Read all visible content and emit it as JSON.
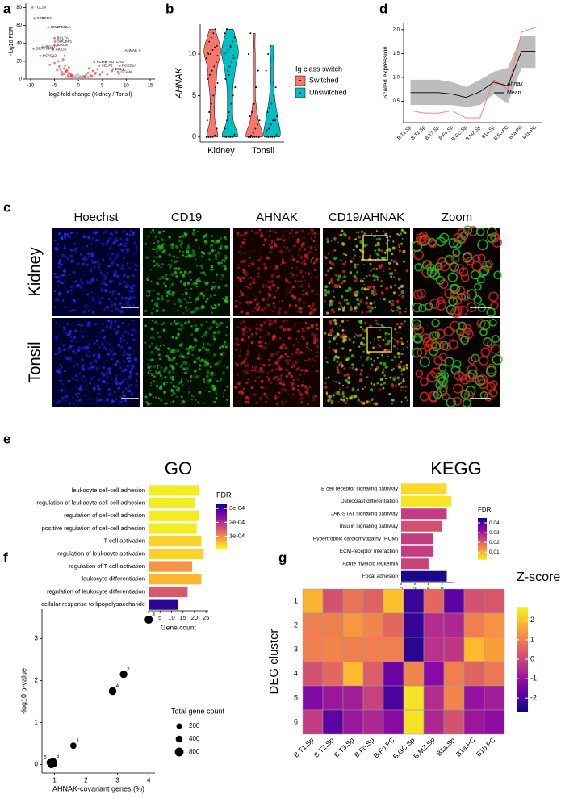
{
  "chart_data": [
    {
      "panel": "a",
      "type": "scatter",
      "xlabel": "log2 fold change (Kidney / Tonsil)",
      "ylabel": "-log10 FDR",
      "xlim": [
        -11,
        16
      ],
      "xticks": [
        -10,
        -5,
        0,
        5,
        10,
        15
      ],
      "ylim": [
        0,
        85
      ],
      "yticks": [
        0,
        20,
        40,
        60,
        80
      ],
      "series": [
        {
          "color": "#9e9e9e",
          "x": [
            -1.8,
            -1.5,
            -1.2,
            -1,
            -0.8,
            -0.6,
            -0.4,
            -0.2,
            0,
            0.2,
            0.4,
            0.6,
            0.8,
            1,
            1.2,
            1.5,
            1.8,
            2.2,
            -2.2,
            -0.5,
            0.3,
            0.9,
            -1.1,
            1.4,
            -0.1,
            0.1,
            0.5,
            -0.7,
            2,
            -2.5
          ],
          "values": [
            1.2,
            2,
            1.5,
            2.6,
            1,
            3,
            1.8,
            0.6,
            0.3,
            0.8,
            2.2,
            1.4,
            2.8,
            1.6,
            1,
            2.1,
            0.9,
            1.3,
            2.4,
            4,
            3.5,
            3.2,
            3.8,
            0.5,
            5,
            1.9,
            0.4,
            0.2,
            2.7,
            1.1
          ]
        },
        {
          "color": "#ff0000",
          "x": [
            -1.5,
            -2,
            -2.5,
            -3,
            -3.5,
            -4,
            -4.5,
            -5,
            -2.2,
            -2.8,
            -3.2,
            -3.8,
            -1.8,
            -2.4,
            -3,
            -4.2,
            -5.5,
            -6,
            -1.6,
            -2,
            -2.6,
            -3.4,
            -1.3,
            -2.9,
            1.2,
            1.6,
            2,
            2.5,
            3,
            3.5,
            4,
            5,
            6,
            1.4,
            2.2,
            2.8,
            3.6,
            4.5,
            7,
            8.5
          ],
          "values": [
            5,
            7,
            9,
            12,
            8,
            14,
            10,
            18,
            4,
            15,
            22,
            11,
            6,
            10,
            6,
            20,
            25,
            16,
            3,
            13,
            8,
            5,
            4,
            26,
            3,
            5,
            7,
            4,
            9,
            6,
            11,
            8,
            5,
            2.5,
            12,
            3.5,
            7,
            5,
            9,
            6
          ]
        },
        {
          "color": "#ff0000",
          "x": [
            -9.6,
            -9.2,
            -6.3,
            -4.6,
            -5,
            -4.9,
            -5,
            -7.4,
            -9.4,
            -5.3,
            -8,
            12.8,
            3.3,
            5.8,
            4.3,
            8.6,
            7.2,
            8.3
          ],
          "values": [
            80,
            68,
            58,
            58,
            46,
            42,
            38,
            36,
            34,
            33,
            26,
            32,
            19,
            19,
            15,
            15,
            11,
            8
          ],
          "labels": [
            "TCL1A",
            "SPRED2",
            "RIN2",
            "FCRLA",
            "BCL7A",
            "SHCBP1",
            "BIRC5",
            "RGS13",
            "SERPINA9",
            "AICDA",
            "DCAF12",
            "AHNAK",
            "FCMR",
            "NOTCH2",
            "CELF2",
            "PCED1A",
            "BCL2",
            "ITGAM"
          ]
        }
      ]
    },
    {
      "panel": "b",
      "type": "violin",
      "ylabel": "AHNAK",
      "ylim": [
        -0.6,
        13.6
      ],
      "yticks": [
        0,
        5,
        10
      ],
      "categories": [
        "Kidney",
        "Tonsil"
      ],
      "legend_title": "Ig class switch",
      "series": [
        {
          "name": "Switched",
          "color": "#f8766d",
          "values": [
            [
              0,
              0,
              0,
              0,
              0.2,
              1,
              2,
              3,
              4,
              5,
              6,
              6.5,
              7,
              7.5,
              8,
              8.5,
              9,
              9.5,
              10,
              10,
              10.5,
              10.8,
              11,
              11.2,
              11.5,
              12,
              12.5,
              13,
              9.8,
              10.2
            ],
            [
              0,
              0,
              0,
              0,
              0,
              0,
              0,
              0.2,
              0.5,
              1,
              1.5,
              2,
              2.5,
              3,
              4,
              6,
              8,
              10,
              12.5
            ]
          ]
        },
        {
          "name": "Unswitched",
          "color": "#00bfc4",
          "values": [
            [
              0,
              0,
              0,
              0,
              0,
              0.3,
              1,
              2,
              3,
              4,
              5,
              6,
              7,
              8,
              8.5,
              9,
              9.5,
              10,
              10.2,
              10.5,
              11,
              11.5,
              12,
              12.5,
              13,
              7.5,
              10.8,
              9.8
            ],
            [
              0,
              0,
              0,
              0,
              0,
              0.3,
              0.8,
              1,
              1.5,
              2,
              2,
              2.5,
              3,
              3.5,
              4,
              5,
              6,
              8,
              10,
              11
            ]
          ]
        }
      ]
    },
    {
      "panel": "d",
      "type": "line",
      "ylabel": "Scaled expression",
      "categories": [
        "B.T1.Sp",
        "B.T2.Sp",
        "B.T3.Sp",
        "B.Fo.Sp",
        "B.GC.Sp",
        "B.MZ.Sp",
        "B1a.Sp",
        "B.Fo.PC",
        "B1a.PC",
        "B1b.PC"
      ],
      "ylim": [
        0.05,
        2.15
      ],
      "yticks": [
        0.5,
        {
          "value": 1,
          "label": "1.0"
        },
        1.5,
        {
          "value": 2,
          "label": "2.0"
        }
      ],
      "series": [
        {
          "name": "Ahnak",
          "color": "#f8766d",
          "values": [
            0.3,
            0.25,
            0.25,
            0.3,
            0.15,
            0.15,
            0.95,
            0.75,
            1.95,
            2.05
          ]
        },
        {
          "name": "Mean",
          "color": "#000000",
          "values": [
            0.68,
            0.68,
            0.68,
            0.65,
            0.58,
            0.7,
            0.9,
            0.82,
            1.55,
            1.55
          ],
          "band_lower": [
            0.42,
            0.42,
            0.42,
            0.42,
            0.38,
            0.42,
            0.65,
            0.45,
            1.2,
            1.2
          ],
          "band_upper": [
            0.95,
            0.95,
            0.95,
            0.9,
            0.8,
            0.95,
            1.12,
            1.2,
            1.88,
            1.88
          ],
          "band_color": "#bdbdbd"
        }
      ]
    },
    {
      "panel": "e",
      "type": "barh",
      "title": "GO",
      "xlabel": "Gene count",
      "xlim": [
        0,
        26
      ],
      "xticks": [
        0,
        5,
        10,
        15,
        20,
        25
      ],
      "categories": [
        "leukocyte cell-cell adhesion",
        "regulation of leukocyte cell-cell adhesion",
        "regulation of cell-cell adhesion",
        "positive regulation of cell-cell adhesion",
        "T cell activation",
        "regulation of leukocyte activation",
        "regulation of T cell activation",
        "leukocyte differentiation",
        "regulation of leukocyte differentiation",
        "cellular response to lipopolysaccharide"
      ],
      "values": [
        22,
        20,
        22,
        21,
        23,
        24,
        19,
        23,
        17,
        13
      ],
      "fdr": [
        2e-05,
        2e-05,
        2e-05,
        2e-05,
        4e-05,
        4e-05,
        9e-05,
        6e-05,
        0.00015,
        0.00031
      ],
      "colormap": "plasma_r",
      "colorbar_title": "FDR",
      "clim": [
        1e-05,
        0.00033
      ],
      "cticks": [
        {
          "value": 0.0001,
          "label": "1e-04"
        },
        {
          "value": 0.0002,
          "label": "2e-04"
        },
        {
          "value": 0.0003,
          "label": "3e-04"
        }
      ]
    },
    {
      "type": "barh",
      "title": "KEGG",
      "xlabel": "Gene count",
      "xlim": [
        0,
        11.5
      ],
      "xticks": [
        0,
        3,
        6,
        9
      ],
      "categories": [
        "B cell receptor signaling pathway",
        "Osteoclast differentiation",
        "JAK-STAT signaling pathway",
        "Insulin signaling pathway",
        "Hypertrophic cardiomyopathy (HCM)",
        "ECM-receptor interaction",
        "Acute myeloid leukemia",
        "Focal adhesion"
      ],
      "values": [
        10,
        11,
        10,
        9,
        7,
        7,
        6,
        10
      ],
      "fdr": [
        0.005,
        0.004,
        0.025,
        0.022,
        0.025,
        0.025,
        0.024,
        0.044
      ],
      "colormap": "plasma_r",
      "colorbar_title": "FDR",
      "clim": [
        0.002,
        0.045
      ],
      "cticks": [
        0.01,
        0.02,
        0.03,
        0.04
      ]
    },
    {
      "panel": "f",
      "type": "bubble",
      "xlabel": "AHNAK-covariant genes (%)",
      "ylabel": "-log10 p-value",
      "xlim": [
        0.6,
        4.2
      ],
      "xticks": [
        1,
        2,
        3,
        4
      ],
      "ylim": [
        -0.2,
        3.7
      ],
      "yticks": [
        0,
        1,
        2,
        3
      ],
      "x": [
        1.6,
        3.2,
        4.0,
        2.85,
        0.85,
        0.95,
        0.9,
        0.98
      ],
      "values": [
        0.45,
        2.15,
        3.45,
        1.75,
        0.05,
        0.08,
        0.0,
        0.02
      ],
      "sizes": [
        300,
        500,
        650,
        550,
        350,
        400,
        450,
        380
      ],
      "labels": [
        "1",
        "2",
        "3",
        "4",
        "5",
        "6",
        null,
        null
      ],
      "size_title": "Total gene count",
      "size_legend": [
        200,
        400,
        800
      ]
    },
    {
      "panel": "g",
      "type": "heatmap",
      "ylabel": "DEG cluster",
      "rows": [
        "1",
        "2",
        "3",
        "4",
        "5",
        "6"
      ],
      "categories": [
        "B.T1.Sp",
        "B.T2.Sp",
        "B.T3.Sp",
        "B.Fo.Sp",
        "B.Fo.PC",
        "B.GC.Sp",
        "B.MZ.Sp",
        "B1a.Sp",
        "B1a.PC",
        "B1b.PC"
      ],
      "values": [
        [
          1.8,
          0.2,
          0.8,
          0.5,
          2.0,
          -2.2,
          0.6,
          -1.8,
          0.2,
          0.3
        ],
        [
          1.0,
          1.0,
          1.4,
          1.1,
          0.6,
          -2.3,
          -0.5,
          -0.6,
          1.0,
          1.3
        ],
        [
          1.0,
          1.1,
          1.0,
          1.0,
          1.0,
          -2.4,
          -0.4,
          -0.3,
          1.9,
          1.5
        ],
        [
          0.2,
          0.6,
          1.9,
          0.4,
          -1.6,
          1.1,
          -1.2,
          1.0,
          0.5,
          0.9
        ],
        [
          -1.3,
          -0.9,
          -0.8,
          -0.1,
          -2.0,
          2.4,
          -0.5,
          1.1,
          -1.0,
          -0.8
        ],
        [
          -0.2,
          -1.8,
          -0.9,
          -0.6,
          -1.2,
          2.4,
          -0.6,
          0.2,
          -0.9,
          -1.1
        ]
      ],
      "colormap": "plasma",
      "colorbar_title": "Z-score",
      "clim": [
        -2.7,
        2.7
      ],
      "cticks": [
        2,
        1,
        0,
        -1,
        -2
      ]
    }
  ],
  "figure_c": {
    "panel": "c",
    "columns": [
      "Hoechst",
      "CD19",
      "AHNAK",
      "CD19/AHNAK",
      "Zoom"
    ],
    "rows": [
      "Kidney",
      "Tonsil"
    ]
  }
}
